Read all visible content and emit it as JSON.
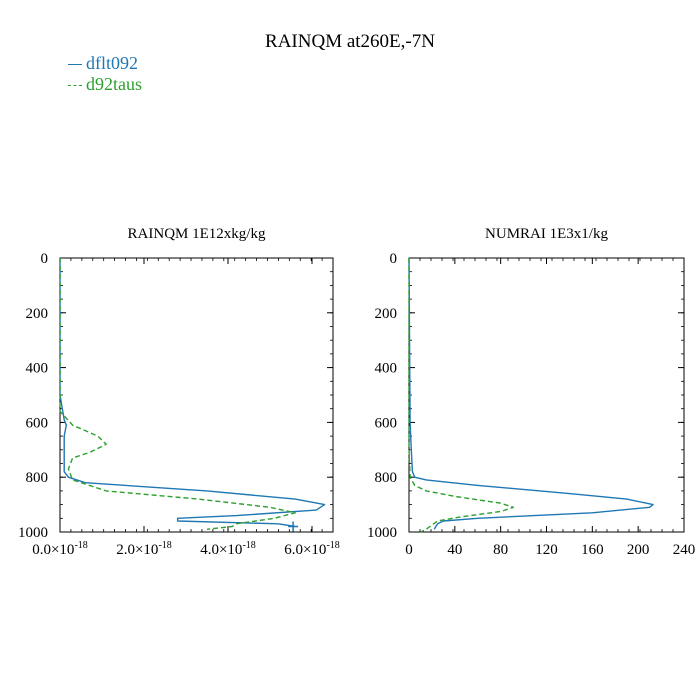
{
  "title": "RAINQM at260E,-7N",
  "legend": [
    {
      "label": "dflt092",
      "color": "#1f77b4",
      "dash": "solid"
    },
    {
      "label": "d92taus",
      "color": "#2ca02c",
      "dash": "dashed"
    }
  ],
  "chart_data": [
    {
      "type": "line",
      "title": "RAINQM  1E12xkg/kg",
      "xlabel": "",
      "ylabel": "",
      "xlim": [
        0,
        6.5e-18
      ],
      "ylim": [
        1000,
        0
      ],
      "y_inverted": true,
      "grid": false,
      "xticks": [
        0,
        2e-18,
        4e-18,
        6e-18
      ],
      "xtick_labels": [
        {
          "mant": "0.0",
          "exp": "-18"
        },
        {
          "mant": "2.0",
          "exp": "-18"
        },
        {
          "mant": "4.0",
          "exp": "-18"
        },
        {
          "mant": "6.0",
          "exp": "-18"
        }
      ],
      "yticks": [
        0,
        200,
        400,
        600,
        800,
        1000
      ],
      "ytick_labels": [
        "0",
        "200",
        "400",
        "600",
        "800",
        "1000"
      ],
      "series": [
        {
          "name": "dflt092",
          "color": "#1f77b4",
          "dash": "solid",
          "x": [
            0,
            0,
            1e-19,
            1.5e-19,
            1e-19,
            1e-19,
            1e-19,
            2e-19,
            6e-19,
            3.5e-18,
            5.6e-18,
            6.3e-18,
            6.1e-18,
            4.2e-18,
            2.8e-18,
            2.8e-18,
            5.2e-18,
            5.6e-18
          ],
          "y": [
            0,
            500,
            590,
            610,
            650,
            700,
            780,
            800,
            820,
            850,
            880,
            900,
            920,
            940,
            950,
            960,
            970,
            980
          ]
        },
        {
          "name": "d92taus",
          "color": "#2ca02c",
          "dash": "dashed",
          "x": [
            0,
            0,
            3e-19,
            9e-19,
            1.1e-18,
            7e-19,
            3e-19,
            2e-19,
            3e-19,
            1.1e-18,
            3.3e-18,
            5e-18,
            5.6e-18,
            5.1e-18,
            4.2e-18,
            4.1e-18,
            3.5e-18
          ],
          "y": [
            0,
            560,
            610,
            650,
            680,
            710,
            730,
            770,
            810,
            850,
            880,
            910,
            930,
            950,
            970,
            980,
            990
          ]
        }
      ],
      "markers": [
        {
          "x": 5.55e-18,
          "y": 980,
          "symbol": "+",
          "color": "#1f77b4"
        }
      ]
    },
    {
      "type": "line",
      "title": "NUMRAI  1E3x1/kg",
      "xlabel": "",
      "ylabel": "",
      "xlim": [
        0,
        240
      ],
      "ylim": [
        1000,
        0
      ],
      "y_inverted": true,
      "grid": false,
      "xticks": [
        0,
        40,
        80,
        120,
        160,
        200,
        240
      ],
      "xtick_labels": [
        "0",
        "40",
        "80",
        "120",
        "160",
        "200",
        "240"
      ],
      "yticks": [
        0,
        200,
        400,
        600,
        800,
        1000
      ],
      "ytick_labels": [
        "0",
        "200",
        "400",
        "600",
        "800",
        "1000"
      ],
      "series": [
        {
          "name": "dflt092",
          "color": "#1f77b4",
          "dash": "solid",
          "x": [
            0,
            1,
            2,
            3,
            5,
            15,
            60,
            140,
            190,
            213,
            210,
            160,
            60,
            30,
            25,
            22
          ],
          "y": [
            0,
            600,
            700,
            780,
            800,
            810,
            830,
            860,
            880,
            900,
            910,
            930,
            950,
            960,
            970,
            990
          ]
        },
        {
          "name": "d92taus",
          "color": "#2ca02c",
          "dash": "dashed",
          "x": [
            0,
            0,
            1,
            5,
            15,
            40,
            80,
            91,
            80,
            45,
            25,
            20,
            15,
            10
          ],
          "y": [
            0,
            700,
            800,
            830,
            850,
            870,
            895,
            910,
            925,
            945,
            960,
            975,
            990,
            1000
          ]
        }
      ]
    }
  ]
}
